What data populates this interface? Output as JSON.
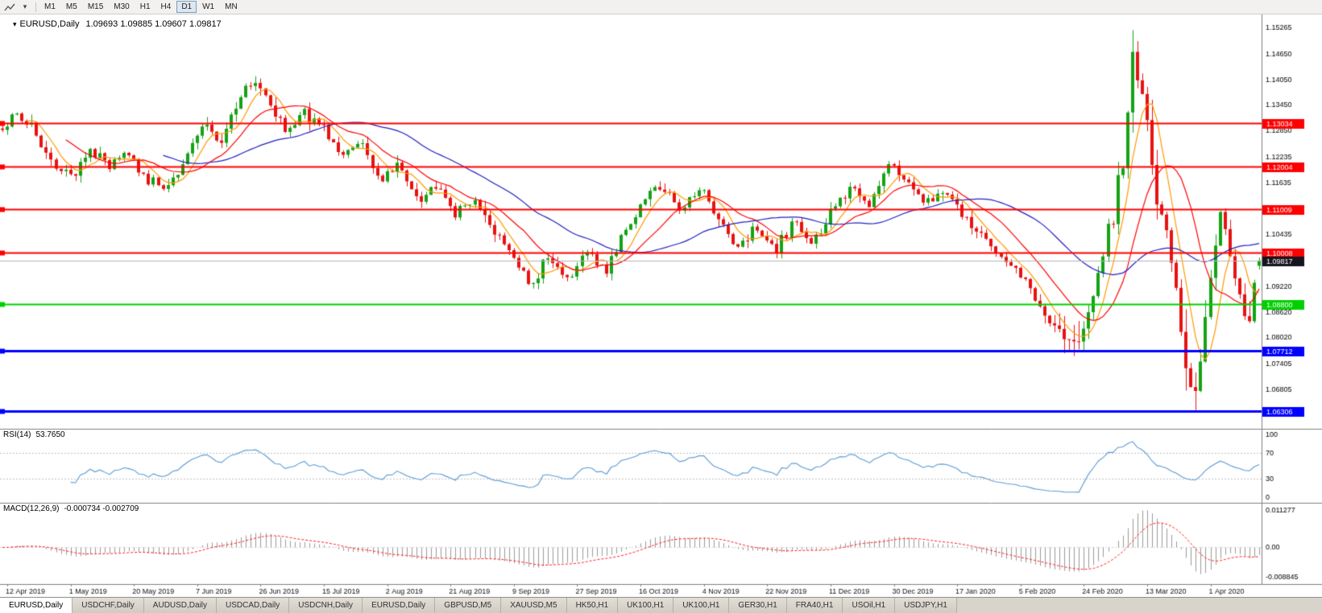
{
  "toolbar": {
    "timeframes": [
      "M1",
      "M5",
      "M15",
      "M30",
      "H1",
      "H4",
      "D1",
      "W1",
      "MN"
    ],
    "active_timeframe": "D1"
  },
  "chart_data": [
    {
      "type": "candlestick",
      "title": "EURUSD,Daily",
      "symbol": "EURUSD",
      "timeframe": "Daily",
      "ohlc_readout": "1.09693 1.09885 1.09607 1.09817",
      "last_candle": {
        "open": 1.09693,
        "high": 1.09885,
        "low": 1.09607,
        "close": 1.09817
      },
      "y_axis": {
        "min": 1.06,
        "max": 1.1545,
        "tick_labels": [
          "1.15265",
          "1.14650",
          "1.14050",
          "1.13450",
          "1.12850",
          "1.12235",
          "1.11635",
          "1.10435",
          "1.09220",
          "1.08620",
          "1.08020",
          "1.07405",
          "1.06805"
        ]
      },
      "x_axis_labels": [
        "12 Apr 2019",
        "1 May 2019",
        "20 May 2019",
        "7 Jun 2019",
        "26 Jun 2019",
        "15 Jul 2019",
        "2 Aug 2019",
        "21 Aug 2019",
        "9 Sep 2019",
        "27 Sep 2019",
        "16 Oct 2019",
        "4 Nov 2019",
        "22 Nov 2019",
        "11 Dec 2019",
        "30 Dec 2019",
        "17 Jan 2020",
        "5 Feb 2020",
        "24 Feb 2020",
        "13 Mar 2020",
        "1 Apr 2020"
      ],
      "num_candles": 259,
      "seed": 20,
      "volatility": 0.0016,
      "high_vol_after": 0.835,
      "high_vol_mult": 2.6,
      "up_color": "#15a215",
      "down_color": "#e81212",
      "moving_averages": [
        {
          "name": "MA-fast",
          "period": 6,
          "color": "#ff9900"
        },
        {
          "name": "MA-medium",
          "period": 14,
          "color": "#ff0000"
        },
        {
          "name": "MA-slow",
          "period": 34,
          "color": "#2020c0"
        }
      ],
      "levels": [
        {
          "price": 1.13034,
          "label": "1.13034",
          "color": "#ff0000",
          "line_width": 2
        },
        {
          "price": 1.12004,
          "label": "1.12004",
          "color": "#ff0000",
          "line_width": 2
        },
        {
          "price": 1.11009,
          "label": "1.11009",
          "color": "#ff0000",
          "line_width": 2
        },
        {
          "price": 1.10008,
          "label": "1.10008",
          "color": "#ff0000",
          "line_width": 2
        },
        {
          "price": 1.088,
          "label": "1.08800",
          "color": "#00d000",
          "line_width": 2
        },
        {
          "price": 1.07712,
          "label": "1.07712",
          "color": "#0000ff",
          "line_width": 3
        },
        {
          "price": 1.06306,
          "label": "1.06306",
          "color": "#0000ff",
          "line_width": 3
        }
      ],
      "current_price": {
        "value": 1.09817,
        "label": "1.09817",
        "line_color": "#b4b4b4",
        "box_color": "#15151f"
      },
      "price_anchors": [
        [
          0.0,
          1.129
        ],
        [
          0.012,
          1.1325
        ],
        [
          0.025,
          1.1285
        ],
        [
          0.04,
          1.121
        ],
        [
          0.055,
          1.118
        ],
        [
          0.07,
          1.1235
        ],
        [
          0.085,
          1.12
        ],
        [
          0.1,
          1.123
        ],
        [
          0.115,
          1.117
        ],
        [
          0.13,
          1.115
        ],
        [
          0.145,
          1.1215
        ],
        [
          0.16,
          1.13
        ],
        [
          0.172,
          1.1255
        ],
        [
          0.185,
          1.133
        ],
        [
          0.198,
          1.1395
        ],
        [
          0.21,
          1.137
        ],
        [
          0.225,
          1.1285
        ],
        [
          0.24,
          1.133
        ],
        [
          0.255,
          1.129
        ],
        [
          0.27,
          1.1225
        ],
        [
          0.285,
          1.127
        ],
        [
          0.3,
          1.116
        ],
        [
          0.315,
          1.1205
        ],
        [
          0.33,
          1.112
        ],
        [
          0.345,
          1.1165
        ],
        [
          0.36,
          1.109
        ],
        [
          0.375,
          1.1125
        ],
        [
          0.39,
          1.106
        ],
        [
          0.405,
          1.0995
        ],
        [
          0.42,
          1.093
        ],
        [
          0.435,
          1.0985
        ],
        [
          0.45,
          1.0935
        ],
        [
          0.465,
          1.1
        ],
        [
          0.48,
          1.0955
        ],
        [
          0.495,
          1.104
        ],
        [
          0.51,
          1.1125
        ],
        [
          0.525,
          1.116
        ],
        [
          0.54,
          1.11
        ],
        [
          0.555,
          1.1155
        ],
        [
          0.57,
          1.107
        ],
        [
          0.585,
          1.102
        ],
        [
          0.6,
          1.106
        ],
        [
          0.615,
          1.1
        ],
        [
          0.63,
          1.1075
        ],
        [
          0.645,
          1.102
        ],
        [
          0.66,
          1.1105
        ],
        [
          0.675,
          1.115
        ],
        [
          0.69,
          1.111
        ],
        [
          0.705,
          1.1215
        ],
        [
          0.72,
          1.116
        ],
        [
          0.735,
          1.1115
        ],
        [
          0.75,
          1.115
        ],
        [
          0.765,
          1.109
        ],
        [
          0.78,
          1.1045
        ],
        [
          0.795,
          1.099
        ],
        [
          0.81,
          1.0945
        ],
        [
          0.825,
          1.088
        ],
        [
          0.84,
          1.08
        ],
        [
          0.852,
          1.079
        ],
        [
          0.862,
          1.086
        ],
        [
          0.872,
          1.096
        ],
        [
          0.882,
          1.106
        ],
        [
          0.892,
          1.122
        ],
        [
          0.9,
          1.1465
        ],
        [
          0.908,
          1.133
        ],
        [
          0.916,
          1.119
        ],
        [
          0.924,
          1.106
        ],
        [
          0.932,
          1.093
        ],
        [
          0.94,
          1.079
        ],
        [
          0.948,
          1.0655
        ],
        [
          0.956,
          1.082
        ],
        [
          0.963,
          1.101
        ],
        [
          0.969,
          1.1105
        ],
        [
          0.976,
          1.1005
        ],
        [
          0.983,
          1.0915
        ],
        [
          0.989,
          1.083
        ],
        [
          0.994,
          1.089
        ],
        [
          1.0,
          1.0982
        ]
      ]
    },
    {
      "type": "line",
      "indicator": "RSI",
      "title": "RSI(14)",
      "current_value": "53.7650",
      "period": 14,
      "color": "#5b9bd5",
      "levels": [
        70,
        30
      ],
      "y_axis": {
        "min": 0,
        "max": 100,
        "tick_labels": [
          "100",
          "70",
          "30",
          "0"
        ]
      }
    },
    {
      "type": "macd",
      "title": "MACD(12,26,9)",
      "current_values": "-0.000734 -0.002709",
      "fast": 12,
      "slow": 26,
      "signal": 9,
      "histogram_color": "#9a9a9a",
      "signal_color": "#ff2020",
      "y_axis_ticks": [
        {
          "label": "0.011277",
          "value": 0.011277
        },
        {
          "label": "0.00",
          "value": 0
        },
        {
          "label": "-0.008845",
          "value": -0.008845
        }
      ]
    }
  ],
  "tabbar": {
    "active_tab_index": 0,
    "tabs": [
      "EURUSD,Daily",
      "USDCHF,Daily",
      "AUDUSD,Daily",
      "USDCAD,Daily",
      "USDCNH,Daily",
      "EURUSD,Daily",
      "GBPUSD,M5",
      "XAUUSD,M5",
      "HK50,H1",
      "UK100,H1",
      "UK100,H1",
      "GER30,H1",
      "FRA40,H1",
      "USOil,H1",
      "USDJPY,H1"
    ]
  }
}
